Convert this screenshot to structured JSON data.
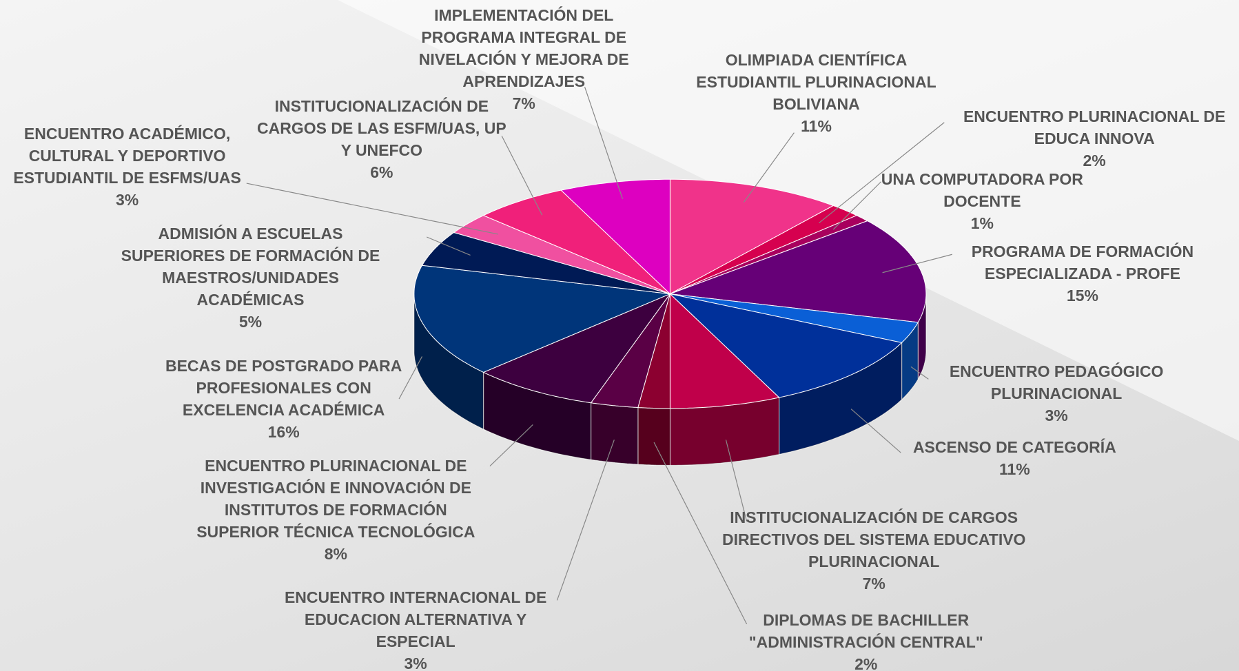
{
  "chart_data": {
    "type": "pie",
    "categories": [
      "OLIMPIADA CIENTÍFICA ESTUDIANTIL PLURINACIONAL BOLIVIANA",
      "ENCUENTRO PLURINACIONAL DE EDUCA INNOVA",
      "UNA COMPUTADORA POR DOCENTE",
      "PROGRAMA DE FORMACIÓN ESPECIALIZADA - PROFE",
      "ENCUENTRO PEDAGÓGICO PLURINACIONAL",
      "ASCENSO DE CATEGORÍA",
      "INSTITUCIONALIZACIÓN DE CARGOS DIRECTIVOS DEL SISTEMA EDUCATIVO PLURINACIONAL",
      "DIPLOMAS DE BACHILLER \"ADMINISTRACIÓN CENTRAL\"",
      "ENCUENTRO INTERNACIONAL DE EDUCACION ALTERNATIVA Y ESPECIAL",
      "ENCUENTRO PLURINACIONAL DE INVESTIGACIÓN E INNOVACIÓN DE INSTITUTOS DE FORMACIÓN SUPERIOR TÉCNICA TECNOLÓGICA",
      "BECAS DE POSTGRADO PARA PROFESIONALES CON EXCELENCIA ACADÉMICA",
      "ADMISIÓN A ESCUELAS SUPERIORES DE FORMACIÓN DE MAESTROS/UNIDADES ACADÉMICAS",
      "ENCUENTRO ACADÉMICO, CULTURAL Y DEPORTIVO ESTUDIANTIL DE ESFMS/UAS",
      "INSTITUCIONALIZACIÓN DE CARGOS DE LAS ESFM/UAS, UP Y UNEFCO",
      "IMPLEMENTACIÓN DEL PROGRAMA INTEGRAL DE NIVELACIÓN Y MEJORA DE APRENDIZAJES"
    ],
    "values": [
      11,
      2,
      1,
      15,
      3,
      11,
      7,
      2,
      3,
      8,
      16,
      5,
      3,
      6,
      7
    ],
    "value_labels": [
      "11%",
      "2%",
      "1%",
      "15%",
      "3%",
      "11%",
      "7%",
      "2%",
      "3%",
      "8%",
      "16%",
      "5%",
      "3%",
      "6%",
      "7%"
    ],
    "colors": [
      "#f0338a",
      "#d6004f",
      "#a8005e",
      "#660077",
      "#0a5fd6",
      "#00309a",
      "#c0004a",
      "#8c0030",
      "#5a0045",
      "#3d003f",
      "#00357a",
      "#001a55",
      "#f050a0",
      "#f0207a",
      "#dd00c0"
    ]
  }
}
